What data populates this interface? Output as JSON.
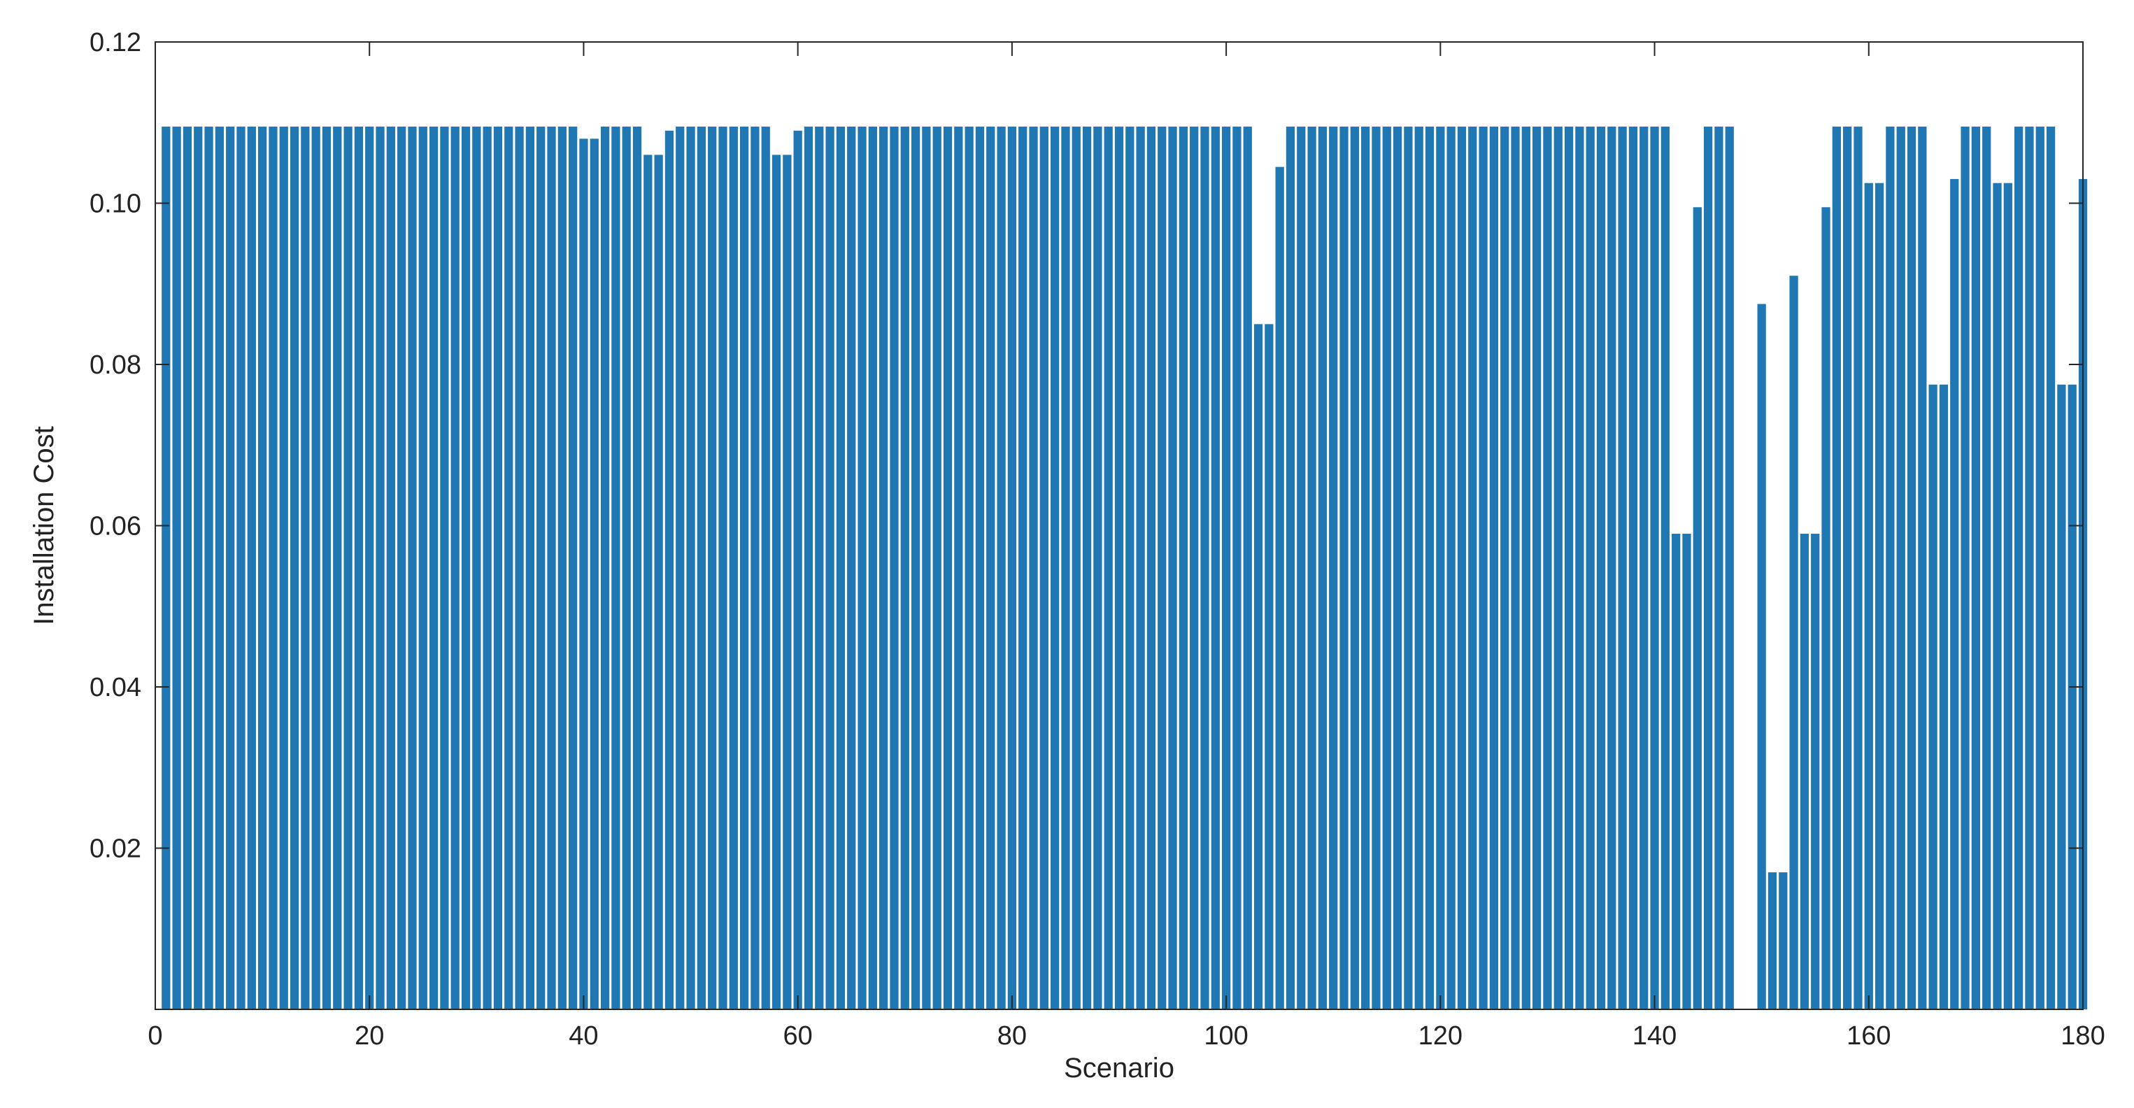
{
  "chart_data": {
    "type": "bar",
    "title": "",
    "xlabel": "Scenario",
    "ylabel": "Installation Cost",
    "xlim": [
      0,
      180
    ],
    "ylim": [
      0,
      0.12
    ],
    "xticks": [
      0,
      20,
      40,
      60,
      80,
      100,
      120,
      140,
      160,
      180
    ],
    "xtick_labels": [
      "0",
      "20",
      "40",
      "60",
      "80",
      "100",
      "120",
      "140",
      "160",
      "180"
    ],
    "yticks": [
      0.02,
      0.04,
      0.06,
      0.08,
      0.1,
      0.12
    ],
    "ytick_labels": [
      "0.02",
      "0.04",
      "0.06",
      "0.08",
      "0.10",
      "0.12"
    ],
    "grid": false,
    "bar_color": "#1f77b4",
    "x": [
      1,
      2,
      3,
      4,
      5,
      6,
      7,
      8,
      9,
      10,
      11,
      12,
      13,
      14,
      15,
      16,
      17,
      18,
      19,
      20,
      21,
      22,
      23,
      24,
      25,
      26,
      27,
      28,
      29,
      30,
      31,
      32,
      33,
      34,
      35,
      36,
      37,
      38,
      39,
      40,
      41,
      42,
      43,
      44,
      45,
      46,
      47,
      48,
      49,
      50,
      51,
      52,
      53,
      54,
      55,
      56,
      57,
      58,
      59,
      60,
      61,
      62,
      63,
      64,
      65,
      66,
      67,
      68,
      69,
      70,
      71,
      72,
      73,
      74,
      75,
      76,
      77,
      78,
      79,
      80,
      81,
      82,
      83,
      84,
      85,
      86,
      87,
      88,
      89,
      90,
      91,
      92,
      93,
      94,
      95,
      96,
      97,
      98,
      99,
      100,
      101,
      102,
      103,
      104,
      105,
      106,
      107,
      108,
      109,
      110,
      111,
      112,
      113,
      114,
      115,
      116,
      117,
      118,
      119,
      120,
      121,
      122,
      123,
      124,
      125,
      126,
      127,
      128,
      129,
      130,
      131,
      132,
      133,
      134,
      135,
      136,
      137,
      138,
      139,
      140,
      141,
      142,
      143,
      144,
      145,
      146,
      147,
      148,
      149,
      150,
      151,
      152,
      153,
      154,
      155,
      156,
      157,
      158,
      159,
      160,
      161,
      162,
      163,
      164,
      165,
      166,
      167,
      168,
      169,
      170,
      171,
      172,
      173,
      174,
      175,
      176,
      177,
      178,
      179,
      180
    ],
    "values": [
      0.1095,
      0.1095,
      0.1095,
      0.1095,
      0.1095,
      0.1095,
      0.1095,
      0.1095,
      0.1095,
      0.1095,
      0.1095,
      0.1095,
      0.1095,
      0.1095,
      0.1095,
      0.1095,
      0.1095,
      0.1095,
      0.1095,
      0.1095,
      0.1095,
      0.1095,
      0.1095,
      0.1095,
      0.1095,
      0.1095,
      0.1095,
      0.1095,
      0.1095,
      0.1095,
      0.1095,
      0.1095,
      0.1095,
      0.1095,
      0.1095,
      0.1095,
      0.1095,
      0.1095,
      0.1095,
      0.108,
      0.108,
      0.1095,
      0.1095,
      0.1095,
      0.1095,
      0.106,
      0.106,
      0.109,
      0.1095,
      0.1095,
      0.1095,
      0.1095,
      0.1095,
      0.1095,
      0.1095,
      0.1095,
      0.1095,
      0.106,
      0.106,
      0.109,
      0.1095,
      0.1095,
      0.1095,
      0.1095,
      0.1095,
      0.1095,
      0.1095,
      0.1095,
      0.1095,
      0.1095,
      0.1095,
      0.1095,
      0.1095,
      0.1095,
      0.1095,
      0.1095,
      0.1095,
      0.1095,
      0.1095,
      0.1095,
      0.1095,
      0.1095,
      0.1095,
      0.1095,
      0.1095,
      0.1095,
      0.1095,
      0.1095,
      0.1095,
      0.1095,
      0.1095,
      0.1095,
      0.1095,
      0.1095,
      0.1095,
      0.1095,
      0.1095,
      0.1095,
      0.1095,
      0.1095,
      0.1095,
      0.1095,
      0.085,
      0.085,
      0.1045,
      0.1095,
      0.1095,
      0.1095,
      0.1095,
      0.1095,
      0.1095,
      0.1095,
      0.1095,
      0.1095,
      0.1095,
      0.1095,
      0.1095,
      0.1095,
      0.1095,
      0.1095,
      0.1095,
      0.1095,
      0.1095,
      0.1095,
      0.1095,
      0.1095,
      0.1095,
      0.1095,
      0.1095,
      0.1095,
      0.1095,
      0.1095,
      0.1095,
      0.1095,
      0.1095,
      0.1095,
      0.1095,
      0.1095,
      0.1095,
      0.1095,
      0.1095,
      0.059,
      0.059,
      0.0995,
      0.1095,
      0.1095,
      0.1095,
      0,
      0,
      0.0875,
      0.017,
      0.017,
      0.091,
      0.059,
      0.059,
      0.0995,
      0.1095,
      0.1095,
      0.1095,
      0.1025,
      0.1025,
      0.1095,
      0.1095,
      0.1095,
      0.1095,
      0.0775,
      0.0775,
      0.103,
      0.1095,
      0.1095,
      0.1095,
      0.1025,
      0.1025,
      0.1095,
      0.1095,
      0.1095,
      0.1095,
      0.0775,
      0.0775,
      0.103
    ]
  }
}
